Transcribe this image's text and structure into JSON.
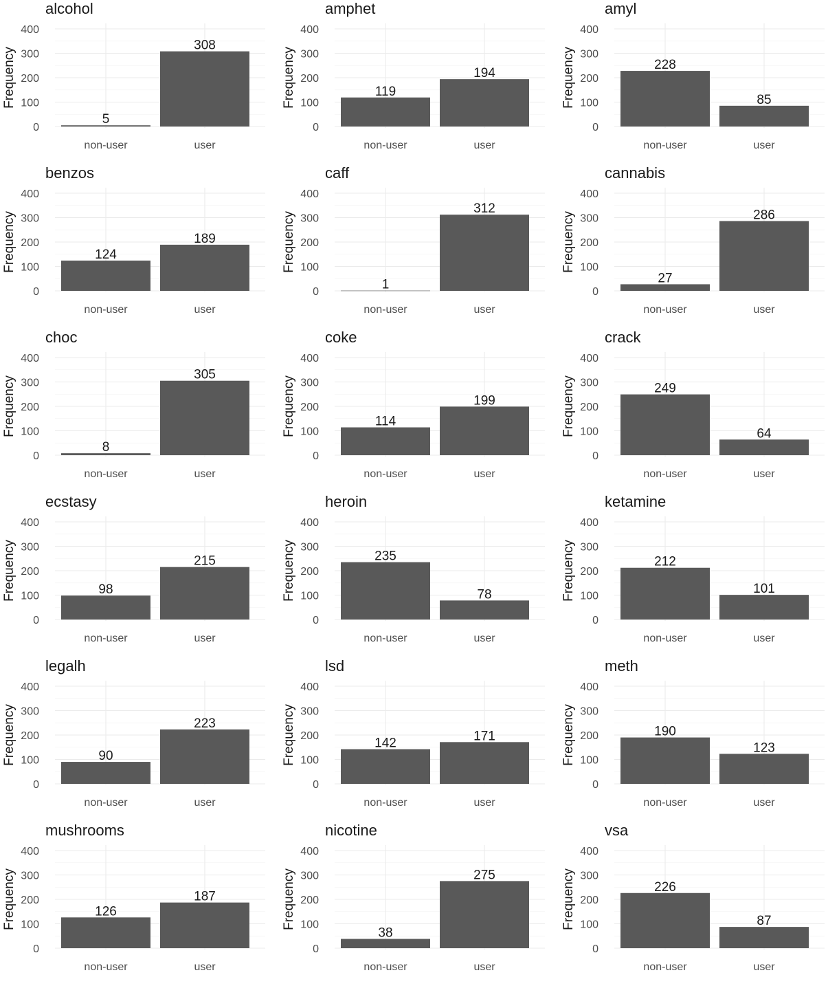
{
  "chart_data": {
    "type": "bar",
    "layout": "facet-grid 6x3",
    "ylabel": "Frequency",
    "categories": [
      "non-user",
      "user"
    ],
    "yticks": [
      0,
      100,
      200,
      300,
      400
    ],
    "ylim": [
      0,
      400
    ],
    "bar_color": "#595959",
    "panels": [
      {
        "title": "alcohol",
        "values": [
          5,
          308
        ]
      },
      {
        "title": "amphet",
        "values": [
          119,
          194
        ]
      },
      {
        "title": "amyl",
        "values": [
          228,
          85
        ]
      },
      {
        "title": "benzos",
        "values": [
          124,
          189
        ]
      },
      {
        "title": "caff",
        "values": [
          1,
          312
        ]
      },
      {
        "title": "cannabis",
        "values": [
          27,
          286
        ]
      },
      {
        "title": "choc",
        "values": [
          8,
          305
        ]
      },
      {
        "title": "coke",
        "values": [
          114,
          199
        ]
      },
      {
        "title": "crack",
        "values": [
          249,
          64
        ]
      },
      {
        "title": "ecstasy",
        "values": [
          98,
          215
        ]
      },
      {
        "title": "heroin",
        "values": [
          235,
          78
        ]
      },
      {
        "title": "ketamine",
        "values": [
          212,
          101
        ]
      },
      {
        "title": "legalh",
        "values": [
          90,
          223
        ]
      },
      {
        "title": "lsd",
        "values": [
          142,
          171
        ]
      },
      {
        "title": "meth",
        "values": [
          190,
          123
        ]
      },
      {
        "title": "mushrooms",
        "values": [
          126,
          187
        ]
      },
      {
        "title": "nicotine",
        "values": [
          38,
          275
        ]
      },
      {
        "title": "vsa",
        "values": [
          226,
          87
        ]
      }
    ]
  }
}
